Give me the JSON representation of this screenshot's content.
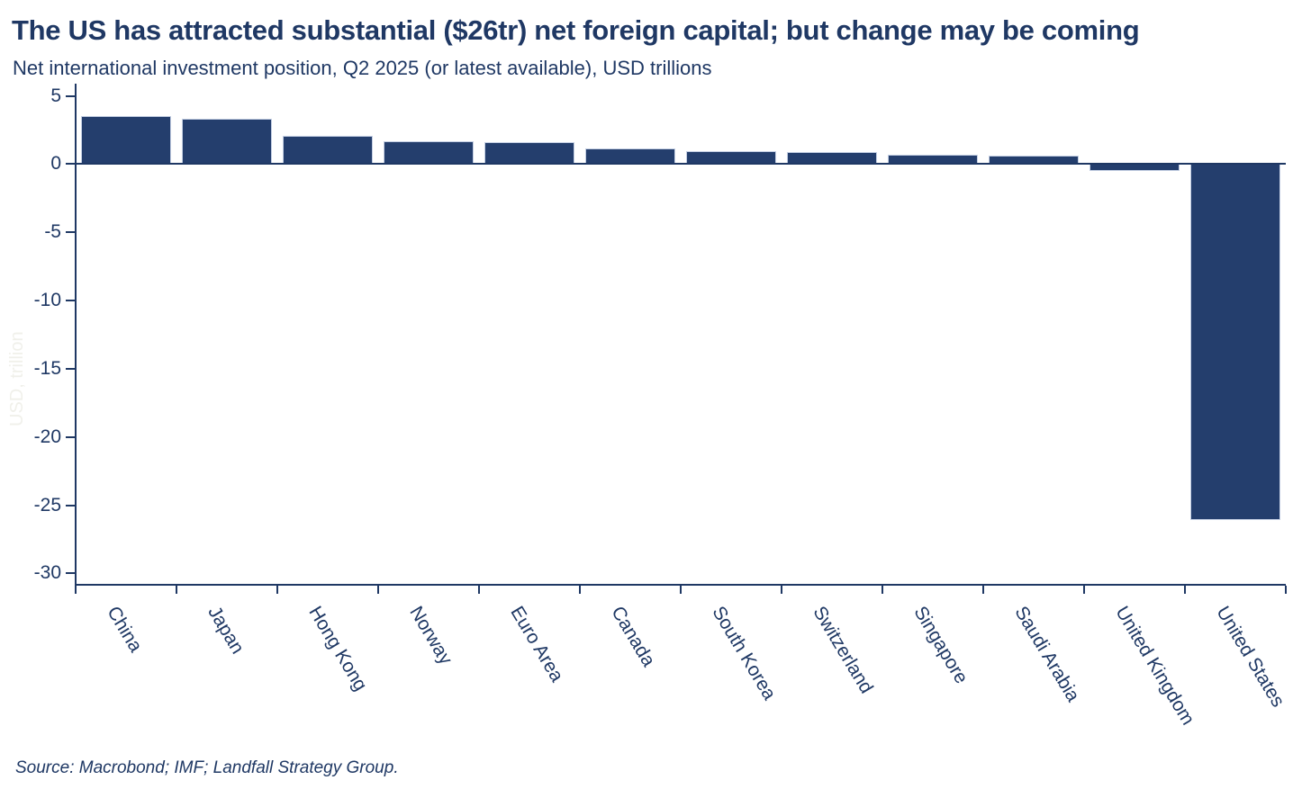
{
  "theme": {
    "text_color": "#1f3864",
    "bar_color": "#243e6d",
    "bar_border_color": "#c4cfe3",
    "faint_label_color": "#f0f0ea",
    "background_color": "#ffffff"
  },
  "header": {
    "title": "The US has attracted substantial ($26tr) net foreign capital; but change may be coming",
    "subtitle": "Net international investment position, Q2 2025 (or latest available), USD trillions"
  },
  "chart_data": {
    "type": "bar",
    "title": "The US has attracted substantial ($26tr) net foreign capital; but change may be coming",
    "subtitle": "Net international investment position, Q2 2025 (or latest available), USD trillions",
    "categories": [
      "China",
      "Japan",
      "Hong Kong",
      "Norway",
      "Euro Area",
      "Canada",
      "South Korea",
      "Switzerland",
      "Singapore",
      "Saudi Arabia",
      "United Kingdom",
      "United States"
    ],
    "values": [
      3.5,
      3.35,
      2.05,
      1.65,
      1.6,
      1.15,
      0.95,
      0.9,
      0.7,
      0.6,
      -0.5,
      -26.1
    ],
    "xlabel": "",
    "ylabel": "USD, trillion",
    "ylim": [
      -30.9,
      5.9
    ],
    "yticks": [
      5,
      0,
      -5,
      -10,
      -15,
      -20,
      -25,
      -30
    ],
    "grid": false,
    "legend": "none",
    "x_tick_label_rotation_deg": -59
  },
  "footer": {
    "source": "Source: Macrobond; IMF; Landfall Strategy Group."
  }
}
